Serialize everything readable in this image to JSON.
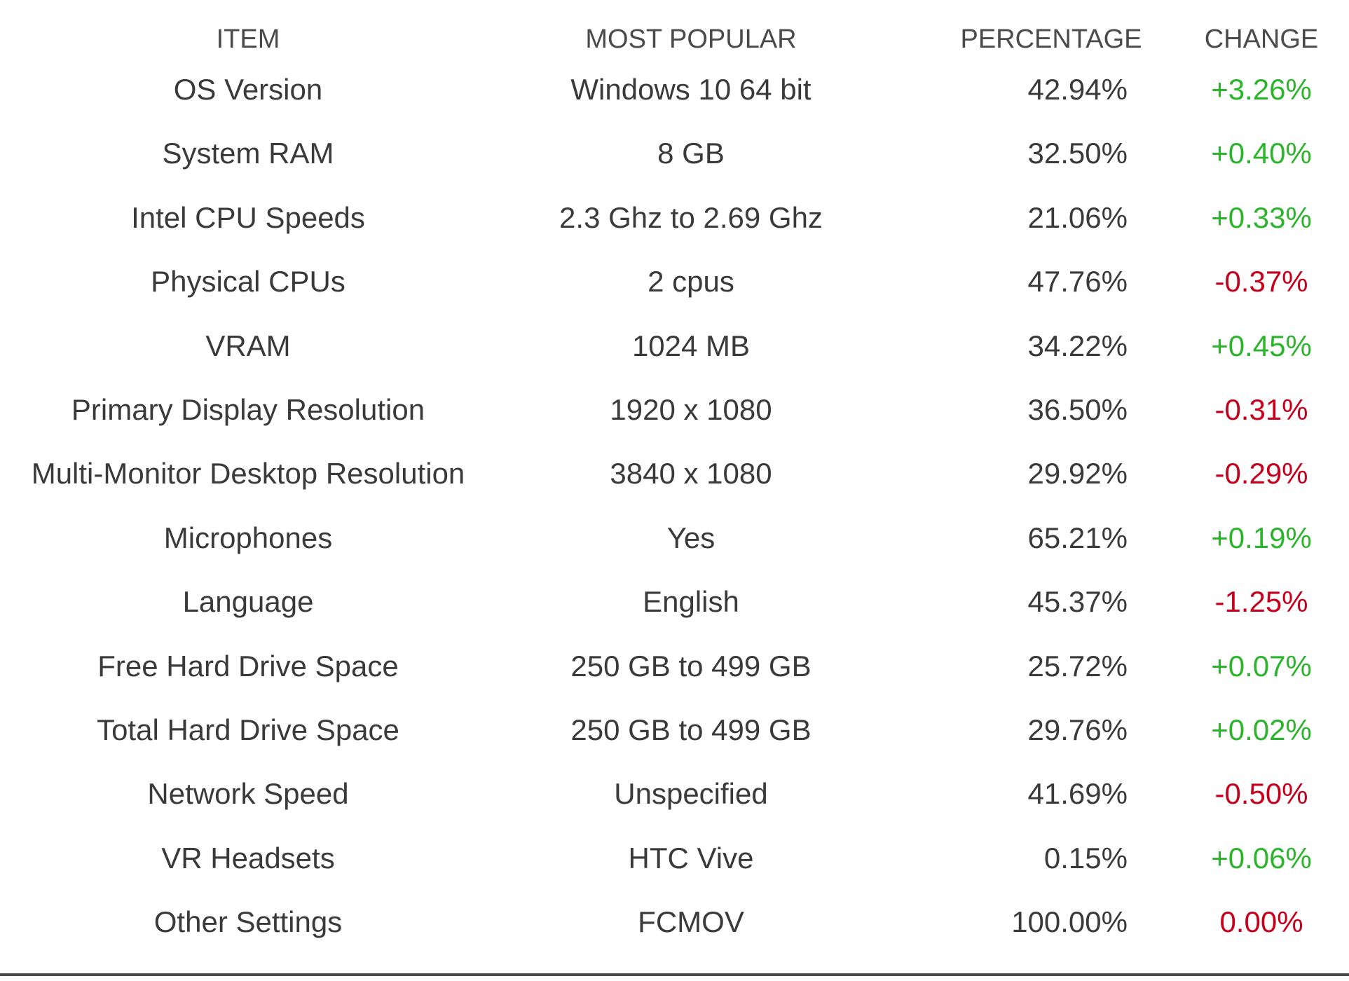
{
  "headers": [
    "ITEM",
    "MOST POPULAR",
    "PERCENTAGE",
    "CHANGE"
  ],
  "colors": {
    "positive": "#2cb52c",
    "negative": "#c4001c",
    "text": "#3a3a3a"
  },
  "rows": [
    {
      "item": "OS Version",
      "popular": "Windows 10 64 bit",
      "percentage": "42.94%",
      "change": "+3.26%",
      "trend": "pos"
    },
    {
      "item": "System RAM",
      "popular": "8 GB",
      "percentage": "32.50%",
      "change": "+0.40%",
      "trend": "pos"
    },
    {
      "item": "Intel CPU Speeds",
      "popular": "2.3 Ghz to 2.69 Ghz",
      "percentage": "21.06%",
      "change": "+0.33%",
      "trend": "pos"
    },
    {
      "item": "Physical CPUs",
      "popular": "2 cpus",
      "percentage": "47.76%",
      "change": "-0.37%",
      "trend": "neg"
    },
    {
      "item": "VRAM",
      "popular": "1024 MB",
      "percentage": "34.22%",
      "change": "+0.45%",
      "trend": "pos"
    },
    {
      "item": "Primary Display Resolution",
      "popular": "1920 x 1080",
      "percentage": "36.50%",
      "change": "-0.31%",
      "trend": "neg"
    },
    {
      "item": "Multi-Monitor Desktop Resolution",
      "popular": "3840 x 1080",
      "percentage": "29.92%",
      "change": "-0.29%",
      "trend": "neg"
    },
    {
      "item": "Microphones",
      "popular": "Yes",
      "percentage": "65.21%",
      "change": "+0.19%",
      "trend": "pos"
    },
    {
      "item": "Language",
      "popular": "English",
      "percentage": "45.37%",
      "change": "-1.25%",
      "trend": "neg"
    },
    {
      "item": "Free Hard Drive Space",
      "popular": "250 GB to 499 GB",
      "percentage": "25.72%",
      "change": "+0.07%",
      "trend": "pos"
    },
    {
      "item": "Total Hard Drive Space",
      "popular": "250 GB to 499 GB",
      "percentage": "29.76%",
      "change": "+0.02%",
      "trend": "pos"
    },
    {
      "item": "Network Speed",
      "popular": "Unspecified",
      "percentage": "41.69%",
      "change": "-0.50%",
      "trend": "neg"
    },
    {
      "item": "VR Headsets",
      "popular": "HTC Vive",
      "percentage": "0.15%",
      "change": "+0.06%",
      "trend": "pos"
    },
    {
      "item": "Other Settings",
      "popular": "FCMOV",
      "percentage": "100.00%",
      "change": "0.00%",
      "trend": "neg"
    }
  ]
}
